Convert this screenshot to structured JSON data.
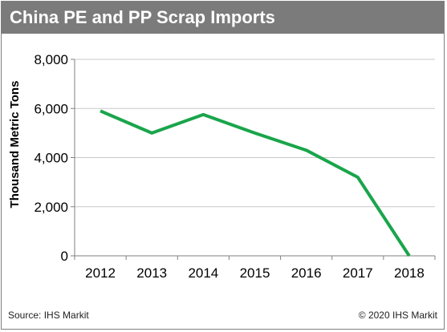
{
  "title": "China PE and PP Scrap Imports",
  "source": "Source: IHS Markit",
  "copyright": "© 2020 IHS Markit",
  "chart_data": {
    "type": "line",
    "title": "China PE and PP Scrap Imports",
    "ylabel": "Thousand Metric Tons",
    "xlabel": "",
    "categories": [
      "2012",
      "2013",
      "2014",
      "2015",
      "2016",
      "2017",
      "2018"
    ],
    "series": [
      {
        "values": [
          5900,
          5000,
          5750,
          5000,
          4300,
          3200,
          0
        ],
        "color": "#1aa54b"
      }
    ],
    "ylim": [
      0,
      8000
    ],
    "yticks": [
      0,
      2000,
      4000,
      6000,
      8000
    ],
    "ytick_labels": [
      "0",
      "2,000",
      "4,000",
      "6,000",
      "8,000"
    ],
    "grid": true,
    "legend": "none"
  }
}
